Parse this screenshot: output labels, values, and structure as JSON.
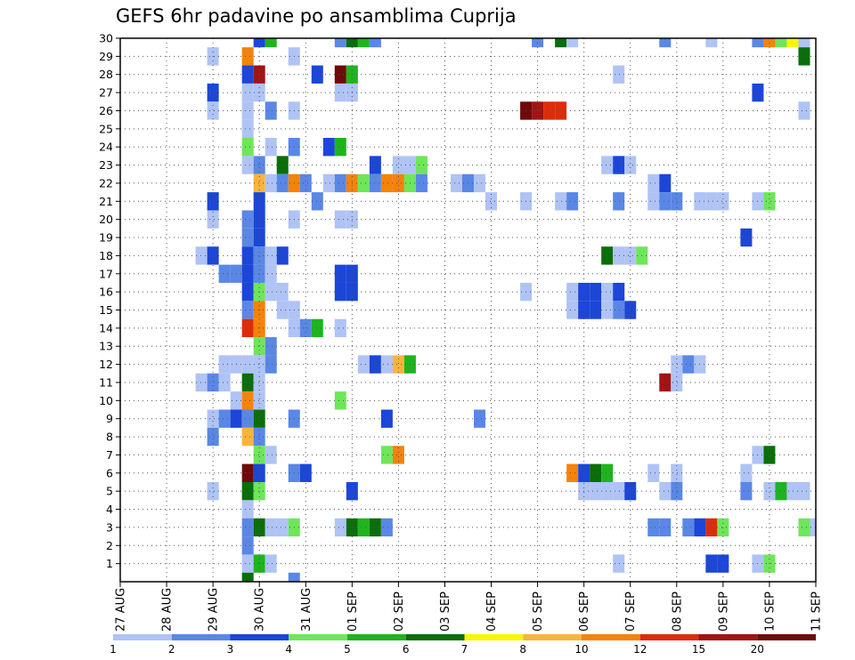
{
  "chart_data": {
    "type": "heatmap",
    "title": "GEFS 6hr padavine po ansamblima Cuprija",
    "x_ticks": [
      "27 AUG",
      "28 AUG",
      "29 AUG",
      "30 AUG",
      "31 AUG",
      "01 SEP",
      "02 SEP",
      "03 SEP",
      "04 SEP",
      "05 SEP",
      "06 SEP",
      "07 SEP",
      "08 SEP",
      "09 SEP",
      "10 SEP",
      "11 SEP"
    ],
    "y_ticks": [
      "1",
      "2",
      "3",
      "4",
      "5",
      "6",
      "7",
      "8",
      "9",
      "10",
      "11",
      "12",
      "13",
      "14",
      "15",
      "16",
      "17",
      "18",
      "19",
      "20",
      "21",
      "22",
      "23",
      "24",
      "25",
      "26",
      "27",
      "28",
      "29",
      "30"
    ],
    "xlim": [
      "27 AUG 00Z",
      "11 SEP 00Z"
    ],
    "ylim": [
      0,
      30
    ],
    "time_step_hours": 6,
    "grid": "dotted",
    "colorbar": {
      "labels": [
        "1",
        "2",
        "3",
        "4",
        "5",
        "6",
        "7",
        "8",
        "10",
        "12",
        "15",
        "20"
      ],
      "colors": [
        "#afc3f5",
        "#5a87e6",
        "#1b46d8",
        "#6ee65a",
        "#1eb41e",
        "#0a6e0a",
        "#f8f50a",
        "#fab43c",
        "#f5820a",
        "#dc2d0a",
        "#a01414",
        "#6e0a0a"
      ]
    },
    "cells": [
      [
        30,
        "30 AUG 00Z",
        3
      ],
      [
        30,
        "30 AUG 06Z",
        5
      ],
      [
        30,
        "31 AUG 18Z",
        2
      ],
      [
        30,
        "01 SEP 00Z",
        6
      ],
      [
        30,
        "01 SEP 06Z",
        5
      ],
      [
        30,
        "01 SEP 12Z",
        2
      ],
      [
        30,
        "05 SEP 00Z",
        2
      ],
      [
        30,
        "05 SEP 12Z",
        6
      ],
      [
        30,
        "05 SEP 18Z",
        1
      ],
      [
        30,
        "07 SEP 18Z",
        2
      ],
      [
        30,
        "08 SEP 18Z",
        1
      ],
      [
        30,
        "09 SEP 18Z",
        2
      ],
      [
        30,
        "10 SEP 00Z",
        10
      ],
      [
        30,
        "10 SEP 06Z",
        4
      ],
      [
        30,
        "10 SEP 12Z",
        7
      ],
      [
        30,
        "10 SEP 18Z",
        1
      ],
      [
        29,
        "29 AUG 00Z",
        1
      ],
      [
        29,
        "29 AUG 18Z",
        10
      ],
      [
        29,
        "30 AUG 18Z",
        1
      ],
      [
        29,
        "10 SEP 18Z",
        6
      ],
      [
        28,
        "29 AUG 18Z",
        3
      ],
      [
        28,
        "30 AUG 00Z",
        15
      ],
      [
        28,
        "31 AUG 06Z",
        3
      ],
      [
        28,
        "31 AUG 18Z",
        20
      ],
      [
        28,
        "01 SEP 00Z",
        5
      ],
      [
        28,
        "06 SEP 18Z",
        1
      ],
      [
        27,
        "29 AUG 00Z",
        3
      ],
      [
        27,
        "29 AUG 18Z",
        1
      ],
      [
        27,
        "30 AUG 00Z",
        1
      ],
      [
        27,
        "31 AUG 18Z",
        1
      ],
      [
        27,
        "01 SEP 00Z",
        1
      ],
      [
        27,
        "09 SEP 18Z",
        3
      ],
      [
        26,
        "29 AUG 00Z",
        1
      ],
      [
        26,
        "29 AUG 18Z",
        1
      ],
      [
        26,
        "30 AUG 06Z",
        2
      ],
      [
        26,
        "30 AUG 18Z",
        1
      ],
      [
        26,
        "04 SEP 18Z",
        20
      ],
      [
        26,
        "05 SEP 00Z",
        15
      ],
      [
        26,
        "05 SEP 06Z",
        12
      ],
      [
        26,
        "05 SEP 12Z",
        12
      ],
      [
        26,
        "10 SEP 18Z",
        1
      ],
      [
        25,
        "29 AUG 18Z",
        1
      ],
      [
        24,
        "29 AUG 18Z",
        4
      ],
      [
        24,
        "30 AUG 06Z",
        1
      ],
      [
        24,
        "30 AUG 18Z",
        2
      ],
      [
        24,
        "31 AUG 12Z",
        3
      ],
      [
        24,
        "31 AUG 18Z",
        5
      ],
      [
        23,
        "29 AUG 18Z",
        1
      ],
      [
        23,
        "30 AUG 00Z",
        2
      ],
      [
        23,
        "30 AUG 12Z",
        6
      ],
      [
        23,
        "01 SEP 12Z",
        3
      ],
      [
        23,
        "02 SEP 00Z",
        1
      ],
      [
        23,
        "02 SEP 06Z",
        1
      ],
      [
        23,
        "02 SEP 12Z",
        4
      ],
      [
        23,
        "06 SEP 12Z",
        1
      ],
      [
        23,
        "06 SEP 18Z",
        3
      ],
      [
        23,
        "07 SEP 00Z",
        1
      ],
      [
        22,
        "30 AUG 00Z",
        8
      ],
      [
        22,
        "30 AUG 06Z",
        1
      ],
      [
        22,
        "30 AUG 12Z",
        2
      ],
      [
        22,
        "30 AUG 18Z",
        10
      ],
      [
        22,
        "31 AUG 00Z",
        2
      ],
      [
        22,
        "31 AUG 12Z",
        1
      ],
      [
        22,
        "31 AUG 18Z",
        2
      ],
      [
        22,
        "01 SEP 00Z",
        10
      ],
      [
        22,
        "01 SEP 06Z",
        4
      ],
      [
        22,
        "01 SEP 12Z",
        2
      ],
      [
        22,
        "01 SEP 18Z",
        10
      ],
      [
        22,
        "02 SEP 00Z",
        10
      ],
      [
        22,
        "02 SEP 06Z",
        4
      ],
      [
        22,
        "02 SEP 12Z",
        2
      ],
      [
        22,
        "03 SEP 06Z",
        1
      ],
      [
        22,
        "03 SEP 12Z",
        2
      ],
      [
        22,
        "03 SEP 18Z",
        1
      ],
      [
        22,
        "07 SEP 12Z",
        1
      ],
      [
        22,
        "07 SEP 18Z",
        3
      ],
      [
        21,
        "29 AUG 00Z",
        3
      ],
      [
        21,
        "30 AUG 00Z",
        3
      ],
      [
        21,
        "31 AUG 06Z",
        2
      ],
      [
        21,
        "04 SEP 00Z",
        1
      ],
      [
        21,
        "04 SEP 18Z",
        1
      ],
      [
        21,
        "05 SEP 12Z",
        1
      ],
      [
        21,
        "05 SEP 18Z",
        2
      ],
      [
        21,
        "06 SEP 18Z",
        2
      ],
      [
        21,
        "07 SEP 12Z",
        1
      ],
      [
        21,
        "07 SEP 18Z",
        2
      ],
      [
        21,
        "08 SEP 00Z",
        2
      ],
      [
        21,
        "08 SEP 12Z",
        1
      ],
      [
        21,
        "08 SEP 18Z",
        1
      ],
      [
        21,
        "09 SEP 00Z",
        1
      ],
      [
        21,
        "09 SEP 18Z",
        1
      ],
      [
        21,
        "10 SEP 00Z",
        4
      ],
      [
        20,
        "29 AUG 00Z",
        1
      ],
      [
        20,
        "29 AUG 18Z",
        2
      ],
      [
        20,
        "30 AUG 00Z",
        3
      ],
      [
        20,
        "30 AUG 18Z",
        1
      ],
      [
        20,
        "31 AUG 18Z",
        1
      ],
      [
        20,
        "01 SEP 00Z",
        1
      ],
      [
        19,
        "29 AUG 18Z",
        2
      ],
      [
        19,
        "30 AUG 00Z",
        3
      ],
      [
        19,
        "09 SEP 12Z",
        3
      ],
      [
        18,
        "28 AUG 18Z",
        1
      ],
      [
        18,
        "29 AUG 00Z",
        3
      ],
      [
        18,
        "29 AUG 18Z",
        3
      ],
      [
        18,
        "30 AUG 00Z",
        2
      ],
      [
        18,
        "30 AUG 06Z",
        1
      ],
      [
        18,
        "30 AUG 12Z",
        3
      ],
      [
        18,
        "06 SEP 12Z",
        6
      ],
      [
        18,
        "06 SEP 18Z",
        1
      ],
      [
        18,
        "07 SEP 00Z",
        1
      ],
      [
        18,
        "07 SEP 06Z",
        4
      ],
      [
        17,
        "29 AUG 06Z",
        2
      ],
      [
        17,
        "29 AUG 12Z",
        2
      ],
      [
        17,
        "29 AUG 18Z",
        3
      ],
      [
        17,
        "30 AUG 00Z",
        2
      ],
      [
        17,
        "30 AUG 06Z",
        1
      ],
      [
        17,
        "31 AUG 18Z",
        3
      ],
      [
        17,
        "01 SEP 00Z",
        3
      ],
      [
        16,
        "29 AUG 18Z",
        3
      ],
      [
        16,
        "30 AUG 00Z",
        4
      ],
      [
        16,
        "30 AUG 06Z",
        1
      ],
      [
        16,
        "30 AUG 12Z",
        1
      ],
      [
        16,
        "31 AUG 18Z",
        3
      ],
      [
        16,
        "01 SEP 00Z",
        3
      ],
      [
        16,
        "04 SEP 18Z",
        1
      ],
      [
        16,
        "05 SEP 18Z",
        1
      ],
      [
        16,
        "06 SEP 00Z",
        3
      ],
      [
        16,
        "06 SEP 06Z",
        3
      ],
      [
        16,
        "06 SEP 12Z",
        1
      ],
      [
        16,
        "06 SEP 18Z",
        3
      ],
      [
        15,
        "29 AUG 18Z",
        2
      ],
      [
        15,
        "30 AUG 00Z",
        10
      ],
      [
        15,
        "30 AUG 12Z",
        1
      ],
      [
        15,
        "30 AUG 18Z",
        1
      ],
      [
        15,
        "05 SEP 18Z",
        1
      ],
      [
        15,
        "06 SEP 00Z",
        3
      ],
      [
        15,
        "06 SEP 06Z",
        3
      ],
      [
        15,
        "06 SEP 12Z",
        1
      ],
      [
        15,
        "06 SEP 18Z",
        2
      ],
      [
        15,
        "07 SEP 00Z",
        3
      ],
      [
        14,
        "29 AUG 18Z",
        12
      ],
      [
        14,
        "30 AUG 00Z",
        10
      ],
      [
        14,
        "30 AUG 18Z",
        1
      ],
      [
        14,
        "31 AUG 00Z",
        2
      ],
      [
        14,
        "31 AUG 06Z",
        5
      ],
      [
        14,
        "31 AUG 18Z",
        1
      ],
      [
        13,
        "30 AUG 00Z",
        4
      ],
      [
        13,
        "30 AUG 06Z",
        2
      ],
      [
        12,
        "29 AUG 06Z",
        1
      ],
      [
        12,
        "29 AUG 12Z",
        1
      ],
      [
        12,
        "29 AUG 18Z",
        1
      ],
      [
        12,
        "30 AUG 00Z",
        1
      ],
      [
        12,
        "30 AUG 06Z",
        2
      ],
      [
        12,
        "01 SEP 06Z",
        1
      ],
      [
        12,
        "01 SEP 12Z",
        3
      ],
      [
        12,
        "01 SEP 18Z",
        1
      ],
      [
        12,
        "02 SEP 00Z",
        8
      ],
      [
        12,
        "02 SEP 06Z",
        5
      ],
      [
        12,
        "08 SEP 00Z",
        1
      ],
      [
        12,
        "08 SEP 06Z",
        2
      ],
      [
        12,
        "08 SEP 12Z",
        1
      ],
      [
        11,
        "28 AUG 18Z",
        1
      ],
      [
        11,
        "29 AUG 00Z",
        2
      ],
      [
        11,
        "29 AUG 06Z",
        1
      ],
      [
        11,
        "29 AUG 18Z",
        6
      ],
      [
        11,
        "30 AUG 00Z",
        1
      ],
      [
        11,
        "07 SEP 18Z",
        15
      ],
      [
        11,
        "08 SEP 00Z",
        1
      ],
      [
        10,
        "29 AUG 12Z",
        1
      ],
      [
        10,
        "29 AUG 18Z",
        10
      ],
      [
        10,
        "30 AUG 00Z",
        1
      ],
      [
        10,
        "31 AUG 18Z",
        4
      ],
      [
        9,
        "29 AUG 00Z",
        1
      ],
      [
        9,
        "29 AUG 06Z",
        2
      ],
      [
        9,
        "29 AUG 12Z",
        3
      ],
      [
        9,
        "29 AUG 18Z",
        2
      ],
      [
        9,
        "30 AUG 00Z",
        6
      ],
      [
        9,
        "30 AUG 18Z",
        2
      ],
      [
        9,
        "01 SEP 18Z",
        3
      ],
      [
        9,
        "03 SEP 18Z",
        2
      ],
      [
        8,
        "29 AUG 00Z",
        2
      ],
      [
        8,
        "29 AUG 18Z",
        8
      ],
      [
        8,
        "30 AUG 00Z",
        2
      ],
      [
        7,
        "30 AUG 00Z",
        4
      ],
      [
        7,
        "30 AUG 06Z",
        1
      ],
      [
        7,
        "01 SEP 18Z",
        4
      ],
      [
        7,
        "02 SEP 00Z",
        10
      ],
      [
        7,
        "09 SEP 18Z",
        1
      ],
      [
        7,
        "10 SEP 00Z",
        6
      ],
      [
        6,
        "29 AUG 18Z",
        20
      ],
      [
        6,
        "30 AUG 00Z",
        3
      ],
      [
        6,
        "30 AUG 18Z",
        2
      ],
      [
        6,
        "31 AUG 00Z",
        3
      ],
      [
        6,
        "05 SEP 18Z",
        10
      ],
      [
        6,
        "06 SEP 00Z",
        3
      ],
      [
        6,
        "06 SEP 06Z",
        6
      ],
      [
        6,
        "06 SEP 12Z",
        5
      ],
      [
        6,
        "07 SEP 12Z",
        1
      ],
      [
        6,
        "08 SEP 00Z",
        1
      ],
      [
        6,
        "09 SEP 12Z",
        1
      ],
      [
        5,
        "29 AUG 00Z",
        1
      ],
      [
        5,
        "29 AUG 18Z",
        6
      ],
      [
        5,
        "30 AUG 00Z",
        4
      ],
      [
        5,
        "01 SEP 00Z",
        3
      ],
      [
        5,
        "06 SEP 00Z",
        1
      ],
      [
        5,
        "06 SEP 06Z",
        1
      ],
      [
        5,
        "06 SEP 12Z",
        1
      ],
      [
        5,
        "06 SEP 18Z",
        1
      ],
      [
        5,
        "07 SEP 00Z",
        3
      ],
      [
        5,
        "07 SEP 18Z",
        1
      ],
      [
        5,
        "08 SEP 00Z",
        2
      ],
      [
        5,
        "09 SEP 12Z",
        2
      ],
      [
        5,
        "10 SEP 00Z",
        1
      ],
      [
        5,
        "10 SEP 06Z",
        5
      ],
      [
        5,
        "10 SEP 12Z",
        1
      ],
      [
        5,
        "10 SEP 18Z",
        1
      ],
      [
        4,
        "29 AUG 18Z",
        1
      ],
      [
        3,
        "29 AUG 18Z",
        2
      ],
      [
        3,
        "30 AUG 00Z",
        6
      ],
      [
        3,
        "30 AUG 06Z",
        1
      ],
      [
        3,
        "30 AUG 12Z",
        1
      ],
      [
        3,
        "30 AUG 18Z",
        4
      ],
      [
        3,
        "31 AUG 18Z",
        1
      ],
      [
        3,
        "01 SEP 00Z",
        6
      ],
      [
        3,
        "01 SEP 06Z",
        5
      ],
      [
        3,
        "01 SEP 12Z",
        6
      ],
      [
        3,
        "01 SEP 18Z",
        2
      ],
      [
        3,
        "07 SEP 12Z",
        2
      ],
      [
        3,
        "07 SEP 18Z",
        2
      ],
      [
        3,
        "08 SEP 06Z",
        2
      ],
      [
        3,
        "08 SEP 12Z",
        3
      ],
      [
        3,
        "08 SEP 18Z",
        12
      ],
      [
        3,
        "09 SEP 00Z",
        4
      ],
      [
        3,
        "10 SEP 18Z",
        4
      ],
      [
        3,
        "11 SEP 00Z",
        1
      ],
      [
        2,
        "29 AUG 18Z",
        2
      ],
      [
        1,
        "29 AUG 18Z",
        1
      ],
      [
        1,
        "30 AUG 00Z",
        5
      ],
      [
        1,
        "30 AUG 06Z",
        1
      ],
      [
        1,
        "06 SEP 18Z",
        1
      ],
      [
        1,
        "08 SEP 18Z",
        3
      ],
      [
        1,
        "09 SEP 00Z",
        3
      ],
      [
        1,
        "09 SEP 18Z",
        1
      ],
      [
        1,
        "10 SEP 00Z",
        4
      ],
      [
        0,
        "29 AUG 18Z",
        6
      ],
      [
        0,
        "30 AUG 18Z",
        2
      ]
    ]
  }
}
